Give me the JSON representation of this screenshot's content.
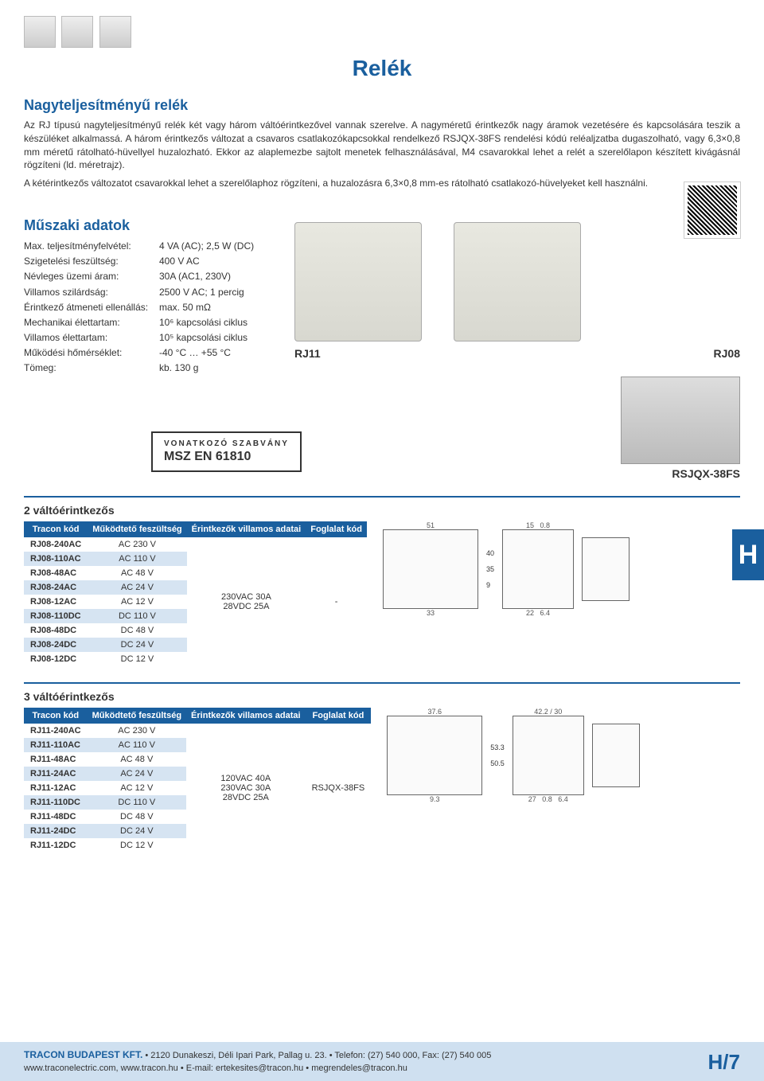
{
  "page": {
    "title": "Relék",
    "side_tab": "H",
    "page_number": "H/7"
  },
  "header_thumbs": 3,
  "intro": {
    "heading": "Nagyteljesítményű relék",
    "paragraphs": [
      "Az RJ típusú nagyteljesítményű relék két vagy három váltóérintkezővel vannak szerelve. A nagyméretű érintkezők nagy áramok vezetésére és kapcsolására teszik a készüléket alkalmassá. A három érintkezős változat a csavaros csatlakozókapcsokkal rendelkező RSJQX-38FS rendelési kódú reléaljzatba dugaszolható, vagy 6,3×0,8 mm méretű rátolható-hüvellyel huzalozható. Ekkor az alaplemezbe sajtolt menetek felhasználásával, M4 csavarokkal lehet a relét a szerelőlapon készített kivágásnál rögzíteni (ld. méretrajz).",
      "A kétérintkezős változatot csavarokkal lehet a szerelőlaphoz rögzíteni, a huzalozásra 6,3×0,8 mm-es rátolható csatlakozó-hüvelyeket kell használni."
    ]
  },
  "tech": {
    "heading": "Műszaki adatok",
    "rows": [
      {
        "label": "Max. teljesítményfelvétel:",
        "value": "4 VA (AC); 2,5 W (DC)"
      },
      {
        "label": "Szigetelési feszültség:",
        "value": "400 V AC"
      },
      {
        "label": "Névleges üzemi áram:",
        "value": "30A (AC1, 230V)"
      },
      {
        "label": "Villamos szilárdság:",
        "value": "2500 V AC; 1 percig"
      },
      {
        "label": "Érintkező átmeneti ellenállás:",
        "value": "max. 50 mΩ"
      },
      {
        "label": "Mechanikai élettartam:",
        "value": "10⁶ kapcsolási ciklus"
      },
      {
        "label": "Villamos élettartam:",
        "value": "10⁵ kapcsolási ciklus"
      },
      {
        "label": "Működési hőmérséklet:",
        "value": "-40 °C … +55 °C"
      },
      {
        "label": "Tömeg:",
        "value": "kb. 130 g"
      }
    ],
    "relay_labels": {
      "left": "RJ11",
      "right": "RJ08"
    }
  },
  "standard": {
    "label": "VONATKOZÓ SZABVÁNY",
    "value": "MSZ EN 61810"
  },
  "aux": {
    "label": "RSJQX-38FS"
  },
  "table1": {
    "title": "2 váltóérintkezős",
    "columns": [
      "Tracon kód",
      "Működtető feszültség",
      "Érintkezők villamos adatai",
      "Foglalat kód"
    ],
    "contact": "230VAC 30A\n28VDC 25A",
    "socket": "-",
    "rows": [
      {
        "code": "RJ08-240AC",
        "volt": "AC 230 V"
      },
      {
        "code": "RJ08-110AC",
        "volt": "AC 110 V"
      },
      {
        "code": "RJ08-48AC",
        "volt": "AC 48 V"
      },
      {
        "code": "RJ08-24AC",
        "volt": "AC 24 V"
      },
      {
        "code": "RJ08-12AC",
        "volt": "AC 12 V"
      },
      {
        "code": "RJ08-110DC",
        "volt": "DC 110 V"
      },
      {
        "code": "RJ08-48DC",
        "volt": "DC 48 V"
      },
      {
        "code": "RJ08-24DC",
        "volt": "DC 24 V"
      },
      {
        "code": "RJ08-12DC",
        "volt": "DC 12 V"
      }
    ],
    "dims": {
      "a": "51",
      "b": "40",
      "c": "35",
      "d": "9",
      "e": "33",
      "f": "15",
      "g": "0.8",
      "h": "22",
      "i": "6.4"
    }
  },
  "table2": {
    "title": "3 váltóérintkezős",
    "columns": [
      "Tracon kód",
      "Működtető feszültség",
      "Érintkezők villamos adatai",
      "Foglalat kód"
    ],
    "contact": "120VAC 40A\n230VAC 30A\n28VDC 25A",
    "socket": "RSJQX-38FS",
    "rows": [
      {
        "code": "RJ11-240AC",
        "volt": "AC 230 V"
      },
      {
        "code": "RJ11-110AC",
        "volt": "AC 110 V"
      },
      {
        "code": "RJ11-48AC",
        "volt": "AC 48 V"
      },
      {
        "code": "RJ11-24AC",
        "volt": "AC 24 V"
      },
      {
        "code": "RJ11-12AC",
        "volt": "AC 12 V"
      },
      {
        "code": "RJ11-110DC",
        "volt": "DC 110 V"
      },
      {
        "code": "RJ11-48DC",
        "volt": "DC 48 V"
      },
      {
        "code": "RJ11-24DC",
        "volt": "DC 24 V"
      },
      {
        "code": "RJ11-12DC",
        "volt": "DC 12 V"
      }
    ],
    "dims": {
      "a": "37.6",
      "b": "53.3",
      "c": "50.5",
      "d": "9.3",
      "e": "42.2",
      "f": "30",
      "g": "27",
      "h": "0.8",
      "i": "6.4"
    }
  },
  "footer": {
    "line1_company": "TRACON BUDAPEST KFT.",
    "line1_rest": " • 2120 Dunakeszi, Déli Ipari Park, Pallag u. 23. • Telefon: (27) 540 000, Fax: (27) 540 005",
    "line2": "www.traconelectric.com, www.tracon.hu • E-mail: ertekesites@tracon.hu • megrendeles@tracon.hu"
  }
}
